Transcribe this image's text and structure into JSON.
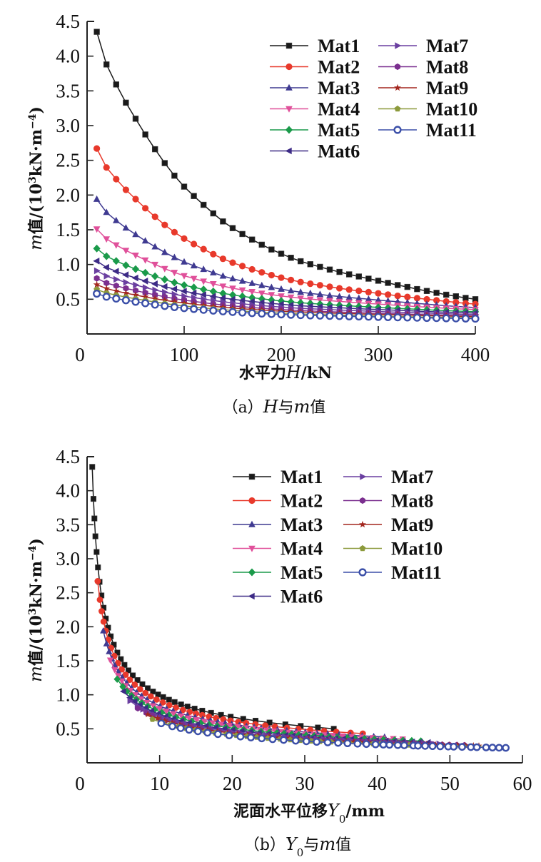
{
  "chart_data": [
    {
      "id": "a",
      "type": "line",
      "caption": {
        "prefix": "（a）",
        "var": "H",
        "mid": "与",
        "var2": "m",
        "suffix": "值"
      },
      "xlabel": {
        "cn": "水平力",
        "var": "H",
        "unit": "/kN"
      },
      "ylabel": {
        "var": "m",
        "cn": "值",
        "unit": "/(10",
        "sup": "3",
        "unit2": "kN·m",
        "sup2": "−4",
        "close": ")"
      },
      "xlim": [
        0,
        400
      ],
      "ylim": [
        0,
        4.5
      ],
      "xticks": [
        0,
        100,
        200,
        300,
        400
      ],
      "xtick_labels": [
        "0",
        "100",
        "200",
        "300",
        "400"
      ],
      "yticks": [
        0.5,
        1.0,
        1.5,
        2.0,
        2.5,
        3.0,
        3.5,
        4.0,
        4.5
      ],
      "ytick_labels": [
        "0.5",
        "1.0",
        "1.5",
        "2.0",
        "2.5",
        "3.0",
        "3.5",
        "4.0",
        "4.5"
      ],
      "legend_position": "top-right",
      "grid": false
    },
    {
      "id": "b",
      "type": "line",
      "caption": {
        "prefix": "（b）",
        "var": "Y",
        "sub": "0",
        "mid": "与",
        "var2": "m",
        "suffix": "值"
      },
      "xlabel": {
        "cn": "泥面水平位移",
        "var": "Y",
        "sub": "0",
        "unit": "/mm"
      },
      "ylabel": {
        "var": "m",
        "cn": "值",
        "unit": "/(10",
        "sup": "3",
        "unit2": "kN·m",
        "sup2": "−4",
        "close": ")"
      },
      "xlim": [
        0,
        60
      ],
      "ylim": [
        0,
        4.5
      ],
      "xticks": [
        0,
        10,
        20,
        30,
        40,
        50,
        60
      ],
      "xtick_labels": [
        "0",
        "10",
        "20",
        "30",
        "40",
        "50",
        "60"
      ],
      "yticks": [
        0.5,
        1.0,
        1.5,
        2.0,
        2.5,
        3.0,
        3.5,
        4.0,
        4.5
      ],
      "ytick_labels": [
        "0.5",
        "1.0",
        "1.5",
        "2.0",
        "2.5",
        "3.0",
        "3.5",
        "4.0",
        "4.5"
      ],
      "legend_position": "top-right",
      "grid": false
    }
  ],
  "H_values_kN": [
    10,
    20,
    30,
    40,
    50,
    60,
    70,
    80,
    90,
    100,
    110,
    120,
    130,
    140,
    150,
    160,
    170,
    180,
    190,
    200,
    210,
    220,
    230,
    240,
    250,
    260,
    270,
    280,
    290,
    300,
    310,
    320,
    330,
    340,
    350,
    360,
    370,
    380,
    390,
    400
  ],
  "decay_shape": [
    1.0,
    0.878,
    0.803,
    0.735,
    0.675,
    0.616,
    0.561,
    0.509,
    0.462,
    0.421,
    0.386,
    0.353,
    0.321,
    0.291,
    0.266,
    0.244,
    0.223,
    0.204,
    0.186,
    0.17,
    0.155,
    0.142,
    0.131,
    0.121,
    0.111,
    0.102,
    0.093,
    0.085,
    0.077,
    0.069,
    0.061,
    0.053,
    0.046,
    0.038,
    0.031,
    0.024,
    0.017,
    0.011,
    0.005,
    0.0
  ],
  "Y0_m_exponent": 0.56,
  "series": [
    {
      "name": "Mat1",
      "color": "#1a1a1a",
      "marker": "square",
      "m_start": 4.35,
      "m_end": 0.5,
      "Y0_end_mm": 34.0
    },
    {
      "name": "Mat2",
      "color": "#e8392b",
      "marker": "circle",
      "m_start": 2.67,
      "m_end": 0.43,
      "Y0_end_mm": 38.0
    },
    {
      "name": "Mat3",
      "color": "#3f3a91",
      "marker": "triangle-up",
      "m_start": 1.94,
      "m_end": 0.38,
      "Y0_end_mm": 41.0
    },
    {
      "name": "Mat4",
      "color": "#e0509a",
      "marker": "triangle-down",
      "m_start": 1.51,
      "m_end": 0.35,
      "Y0_end_mm": 43.5
    },
    {
      "name": "Mat5",
      "color": "#1a9a4a",
      "marker": "diamond",
      "m_start": 1.23,
      "m_end": 0.32,
      "Y0_end_mm": 46.0
    },
    {
      "name": "Mat6",
      "color": "#3d2b86",
      "marker": "triangle-left",
      "m_start": 1.05,
      "m_end": 0.3,
      "Y0_end_mm": 47.0
    },
    {
      "name": "Mat7",
      "color": "#6a3fa0",
      "marker": "triangle-right",
      "m_start": 0.91,
      "m_end": 0.28,
      "Y0_end_mm": 48.5
    },
    {
      "name": "Mat8",
      "color": "#7b2f8f",
      "marker": "hexagon",
      "m_start": 0.8,
      "m_end": 0.26,
      "Y0_end_mm": 52.0
    },
    {
      "name": "Mat9",
      "color": "#a3271f",
      "marker": "star",
      "m_start": 0.71,
      "m_end": 0.25,
      "Y0_end_mm": 54.0
    },
    {
      "name": "Mat10",
      "color": "#8c9a3c",
      "marker": "pentagon",
      "m_start": 0.64,
      "m_end": 0.23,
      "Y0_end_mm": 56.0
    },
    {
      "name": "Mat11",
      "color": "#3b4fa8",
      "marker": "open-circle",
      "m_start": 0.58,
      "m_end": 0.22,
      "Y0_end_mm": 57.7
    }
  ]
}
